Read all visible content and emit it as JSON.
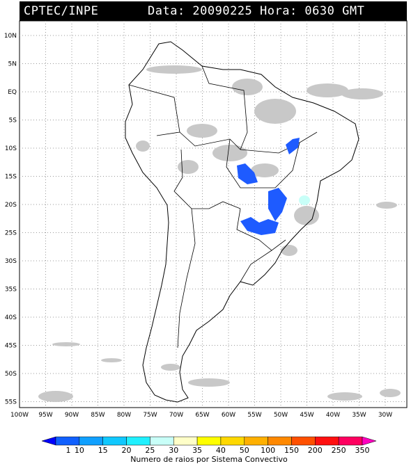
{
  "header": {
    "org": "CPTEC/INPE",
    "date_time": "Data: 20090225 Hora: 0630 GMT"
  },
  "map": {
    "region": "South America",
    "lon_labels": [
      "100W",
      "95W",
      "90W",
      "85W",
      "80W",
      "75W",
      "70W",
      "65W",
      "60W",
      "55W",
      "50W",
      "45W",
      "40W",
      "35W",
      "30W"
    ],
    "lat_labels": [
      "10N",
      "5N",
      "EQ",
      "5S",
      "10S",
      "15S",
      "20S",
      "25S",
      "30S",
      "35S",
      "40S",
      "45S",
      "50S",
      "55S"
    ],
    "grid": "dotted",
    "cloud_color": "#c8c8c8",
    "lightning_color": "#1e5bff"
  },
  "colorbar": {
    "ticks": [
      "1",
      "10",
      "15",
      "20",
      "25",
      "30",
      "35",
      "40",
      "50",
      "100",
      "150",
      "200",
      "250",
      "350"
    ],
    "colors": [
      "#0000ff",
      "#1060ff",
      "#10a0ff",
      "#10c8ff",
      "#20f0ff",
      "#c8fff8",
      "#ffffc8",
      "#ffff00",
      "#ffd800",
      "#ffb000",
      "#ff8800",
      "#ff5000",
      "#ff1010",
      "#ff0060",
      "#ff00c0"
    ],
    "caption": "Numero de raios por Sistema Convectivo"
  }
}
